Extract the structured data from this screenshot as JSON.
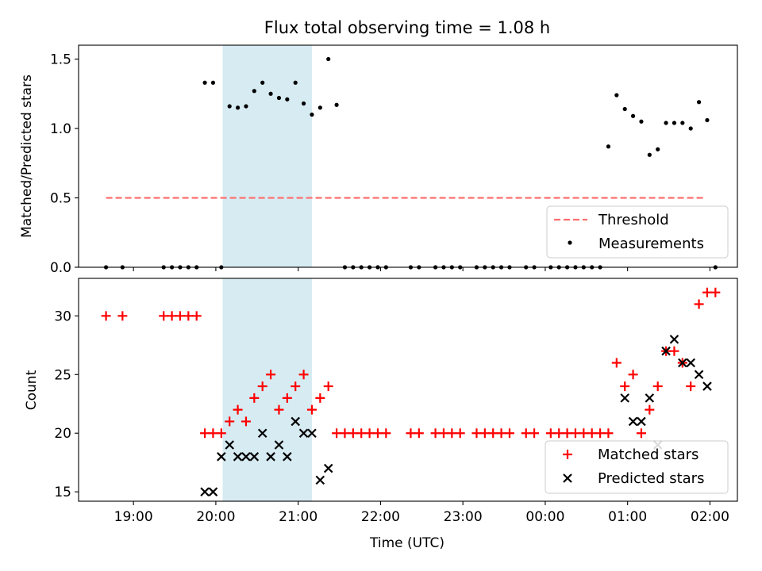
{
  "figure": {
    "title": "Flux total observing time = 1.08 h",
    "xlabel": "Time (UTC)",
    "x_tick_labels": [
      "19:00",
      "20:00",
      "21:00",
      "22:00",
      "23:00",
      "00:00",
      "01:00",
      "02:00"
    ]
  },
  "chart_data": [
    {
      "type": "scatter",
      "ylabel": "Matched/Predicted stars",
      "ylim": [
        0,
        1.6
      ],
      "yticks": [
        0.0,
        0.5,
        1.0,
        1.5
      ],
      "y_tick_labels": [
        "0.0",
        "0.5",
        "1.0",
        "1.5"
      ],
      "grid": false,
      "legend_position": "lower-right",
      "shaded_span": {
        "x": [
          "20:05",
          "21:10"
        ],
        "color": "#add8e6"
      },
      "series": [
        {
          "name": "Threshold",
          "kind": "dashed-line",
          "color": "#ff6f6f",
          "x": [
            "18:40",
            "01:55"
          ],
          "y": [
            0.5,
            0.5
          ]
        },
        {
          "name": "Measurements",
          "kind": "points",
          "color": "#000000",
          "x": [
            "18:40",
            "18:52",
            "19:22",
            "19:28",
            "19:34",
            "19:40",
            "19:46",
            "19:52",
            "19:58",
            "20:04",
            "20:10",
            "20:16",
            "20:22",
            "20:28",
            "20:34",
            "20:40",
            "20:46",
            "20:52",
            "20:58",
            "21:04",
            "21:10",
            "21:16",
            "21:22",
            "21:28",
            "21:34",
            "21:40",
            "21:46",
            "21:52",
            "21:58",
            "22:04",
            "22:22",
            "22:28",
            "22:40",
            "22:46",
            "22:52",
            "22:58",
            "23:10",
            "23:16",
            "23:22",
            "23:28",
            "23:34",
            "23:46",
            "23:52",
            "00:04",
            "00:10",
            "00:16",
            "00:22",
            "00:28",
            "00:34",
            "00:40",
            "00:46",
            "00:52",
            "00:58",
            "01:04",
            "01:10",
            "01:16",
            "01:22",
            "01:28",
            "01:34",
            "01:40",
            "01:46",
            "01:52",
            "01:58",
            "02:04"
          ],
          "y": [
            0,
            0,
            0,
            0,
            0,
            0,
            0,
            1.33,
            1.33,
            0,
            1.16,
            1.15,
            1.16,
            1.27,
            1.33,
            1.25,
            1.22,
            1.21,
            1.33,
            1.18,
            1.1,
            1.15,
            1.5,
            1.17,
            0,
            0,
            0,
            0,
            0,
            0,
            0,
            0,
            0,
            0,
            0,
            0,
            0,
            0,
            0,
            0,
            0,
            0,
            0,
            0,
            0,
            0,
            0,
            0,
            0,
            0,
            0.87,
            1.24,
            1.14,
            1.09,
            1.05,
            0.81,
            0.85,
            1.04,
            1.04,
            1.04,
            1.0,
            1.19,
            1.06,
            0
          ]
        }
      ]
    },
    {
      "type": "scatter",
      "ylabel": "Count",
      "ylim": [
        14.2,
        33.2
      ],
      "yticks": [
        15,
        20,
        25,
        30
      ],
      "y_tick_labels": [
        "15",
        "20",
        "25",
        "30"
      ],
      "grid": false,
      "legend_position": "lower-right",
      "shaded_span": {
        "x": [
          "20:05",
          "21:10"
        ],
        "color": "#add8e6"
      },
      "series": [
        {
          "name": "Matched stars",
          "marker": "+",
          "color": "#ff0000",
          "x": [
            "18:40",
            "18:52",
            "19:22",
            "19:28",
            "19:34",
            "19:40",
            "19:46",
            "19:52",
            "19:58",
            "20:04",
            "20:10",
            "20:16",
            "20:22",
            "20:28",
            "20:34",
            "20:40",
            "20:46",
            "20:52",
            "20:58",
            "21:04",
            "21:10",
            "21:16",
            "21:22",
            "21:28",
            "21:34",
            "21:40",
            "21:46",
            "21:52",
            "21:58",
            "22:04",
            "22:22",
            "22:28",
            "22:40",
            "22:46",
            "22:52",
            "22:58",
            "23:10",
            "23:16",
            "23:22",
            "23:28",
            "23:34",
            "23:46",
            "23:52",
            "00:04",
            "00:10",
            "00:16",
            "00:22",
            "00:28",
            "00:34",
            "00:40",
            "00:46",
            "00:52",
            "00:58",
            "01:04",
            "01:10",
            "01:16",
            "01:22",
            "01:28",
            "01:34",
            "01:40",
            "01:46",
            "01:52",
            "01:58",
            "02:04"
          ],
          "y": [
            30,
            30,
            30,
            30,
            30,
            30,
            30,
            20,
            20,
            20,
            21,
            22,
            21,
            23,
            24,
            25,
            22,
            23,
            24,
            25,
            22,
            23,
            24,
            20,
            20,
            20,
            20,
            20,
            20,
            20,
            20,
            20,
            20,
            20,
            20,
            20,
            20,
            20,
            20,
            20,
            20,
            20,
            20,
            20,
            20,
            20,
            20,
            20,
            20,
            20,
            20,
            26,
            24,
            25,
            20,
            22,
            24,
            27,
            27,
            26,
            24,
            31,
            32,
            32
          ]
        },
        {
          "name": "Predicted stars",
          "marker": "x",
          "color": "#000000",
          "x": [
            "19:52",
            "19:58",
            "20:04",
            "20:10",
            "20:16",
            "20:22",
            "20:28",
            "20:34",
            "20:40",
            "20:46",
            "20:52",
            "20:58",
            "21:04",
            "21:10",
            "21:16",
            "21:22",
            "00:58",
            "01:04",
            "01:10",
            "01:16",
            "01:22",
            "01:28",
            "01:34",
            "01:40",
            "01:46",
            "01:52",
            "01:58"
          ],
          "y": [
            15,
            15,
            18,
            19,
            18,
            18,
            18,
            20,
            18,
            19,
            18,
            21,
            20,
            20,
            16,
            17,
            23,
            21,
            21,
            23,
            19,
            27,
            28,
            26,
            26,
            25,
            24
          ]
        }
      ]
    }
  ]
}
